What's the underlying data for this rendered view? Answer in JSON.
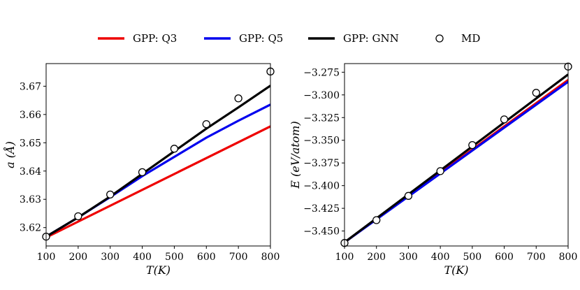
{
  "legend": {
    "items": [
      {
        "label": "GPP: Q3",
        "color": "#ee0000",
        "kind": "line"
      },
      {
        "label": "GPP: Q5",
        "color": "#0000ee",
        "kind": "line"
      },
      {
        "label": "GPP: GNN",
        "color": "#000000",
        "kind": "line"
      },
      {
        "label": "MD",
        "color": "#000000",
        "kind": "marker"
      }
    ]
  },
  "chart_data": [
    {
      "type": "line",
      "title": "",
      "xlabel": "T(K)",
      "ylabel": "a (Å)",
      "xlim": [
        100,
        800
      ],
      "ylim": [
        3.6135,
        3.678
      ],
      "xticks": [
        100,
        200,
        300,
        400,
        500,
        600,
        700,
        800
      ],
      "yticks": [
        3.62,
        3.63,
        3.64,
        3.65,
        3.66,
        3.67
      ],
      "ytick_labels": [
        "3.62",
        "3.63",
        "3.64",
        "3.65",
        "3.66",
        "3.67"
      ],
      "series": [
        {
          "name": "GPP: Q3",
          "color": "#ee0000",
          "x": [
            100,
            800
          ],
          "y": [
            3.6165,
            3.6558
          ]
        },
        {
          "name": "GPP: Q5",
          "color": "#0000ee",
          "x": [
            100,
            200,
            300,
            400,
            500,
            600,
            700,
            800
          ],
          "y": [
            3.6168,
            3.6236,
            3.6308,
            3.6382,
            3.645,
            3.6518,
            3.6578,
            3.6635
          ]
        },
        {
          "name": "GPP: GNN",
          "color": "#000000",
          "x": [
            100,
            200,
            300,
            400,
            500,
            600,
            700,
            800
          ],
          "y": [
            3.6168,
            3.6236,
            3.631,
            3.639,
            3.647,
            3.655,
            3.6625,
            3.6702
          ]
        }
      ],
      "markers": {
        "name": "MD",
        "x": [
          100,
          200,
          300,
          400,
          500,
          600,
          700,
          800
        ],
        "y": [
          3.6168,
          3.624,
          3.6317,
          3.6396,
          3.6479,
          3.6566,
          3.6657,
          3.6752
        ]
      }
    },
    {
      "type": "line",
      "title": "",
      "xlabel": "T(K)",
      "ylabel": "E (eV/atom)",
      "xlim": [
        100,
        800
      ],
      "ylim": [
        -3.4665,
        -3.2655
      ],
      "xticks": [
        100,
        200,
        300,
        400,
        500,
        600,
        700,
        800
      ],
      "yticks": [
        -3.45,
        -3.425,
        -3.4,
        -3.375,
        -3.35,
        -3.325,
        -3.3,
        -3.275
      ],
      "ytick_labels": [
        "−3.450",
        "−3.425",
        "−3.400",
        "−3.375",
        "−3.350",
        "−3.325",
        "−3.300",
        "−3.275"
      ],
      "series": [
        {
          "name": "GPP: Q3",
          "color": "#ee0000",
          "x": [
            100,
            800
          ],
          "y": [
            -3.4625,
            -3.2835
          ]
        },
        {
          "name": "GPP: Q5",
          "color": "#0000ee",
          "x": [
            100,
            800
          ],
          "y": [
            -3.4625,
            -3.2855
          ]
        },
        {
          "name": "GPP: GNN",
          "color": "#000000",
          "x": [
            100,
            800
          ],
          "y": [
            -3.4625,
            -3.2775
          ]
        }
      ],
      "markers": {
        "name": "MD",
        "x": [
          100,
          200,
          300,
          400,
          500,
          600,
          700,
          800
        ],
        "y": [
          -3.4632,
          -3.438,
          -3.4113,
          -3.384,
          -3.3553,
          -3.327,
          -3.2977,
          -3.2688
        ]
      }
    }
  ]
}
